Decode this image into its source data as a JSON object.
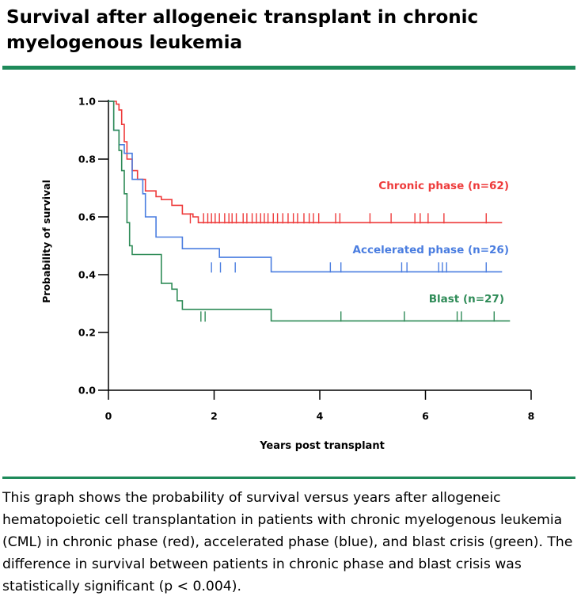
{
  "title": "Survival after allogeneic transplant in chronic myelogenous leukemia",
  "caption": "This graph shows the probability of survival versus years after allogeneic hematopoietic cell transplantation in patients with chronic myelogenous leukemia (CML) in chronic phase (red), accelerated phase (blue), and blast crisis (green). The difference in survival between patients in chronic phase and blast crisis was statistically significant (p < 0.004).",
  "chart_data": {
    "type": "line",
    "style": "step",
    "title": "",
    "xlabel": "Years post transplant",
    "ylabel": "Probability of survival",
    "xlim": [
      0,
      8
    ],
    "ylim": [
      0,
      1
    ],
    "xticks": [
      0,
      2,
      4,
      6,
      8
    ],
    "yticks": [
      0.0,
      0.2,
      0.4,
      0.6,
      0.8,
      1.0
    ],
    "xtick_labels": [
      "0",
      "2",
      "4",
      "6",
      "8"
    ],
    "ytick_labels": [
      "0.0",
      "0.2",
      "0.4",
      "0.6",
      "0.8",
      "1.0"
    ],
    "grid": false,
    "legend": "inline labels at right",
    "series": [
      {
        "name": "Chronic phase (n=62)",
        "color": "#ee3b3b",
        "points": [
          [
            0,
            1.0
          ],
          [
            0.15,
            0.99
          ],
          [
            0.2,
            0.97
          ],
          [
            0.25,
            0.92
          ],
          [
            0.3,
            0.86
          ],
          [
            0.35,
            0.8
          ],
          [
            0.45,
            0.76
          ],
          [
            0.55,
            0.73
          ],
          [
            0.7,
            0.69
          ],
          [
            0.9,
            0.67
          ],
          [
            1.0,
            0.66
          ],
          [
            1.2,
            0.64
          ],
          [
            1.4,
            0.61
          ],
          [
            1.6,
            0.6
          ],
          [
            1.7,
            0.58
          ],
          [
            7.45,
            0.58
          ]
        ],
        "censor_x": [
          1.55,
          1.8,
          1.88,
          1.95,
          2.02,
          2.1,
          2.2,
          2.28,
          2.34,
          2.42,
          2.55,
          2.62,
          2.72,
          2.8,
          2.88,
          2.95,
          3.02,
          3.12,
          3.2,
          3.3,
          3.4,
          3.5,
          3.58,
          3.7,
          3.8,
          3.88,
          3.98,
          4.3,
          4.38,
          4.95,
          5.35,
          5.8,
          5.9,
          6.05,
          6.35,
          7.15
        ],
        "censor_y": 0.58
      },
      {
        "name": "Accelerated phase (n=26)",
        "color": "#4a7de0",
        "points": [
          [
            0,
            1.0
          ],
          [
            0.1,
            0.9
          ],
          [
            0.2,
            0.85
          ],
          [
            0.3,
            0.82
          ],
          [
            0.45,
            0.73
          ],
          [
            0.6,
            0.73
          ],
          [
            0.65,
            0.68
          ],
          [
            0.7,
            0.6
          ],
          [
            0.9,
            0.53
          ],
          [
            1.4,
            0.49
          ],
          [
            1.95,
            0.49
          ],
          [
            2.1,
            0.46
          ],
          [
            3.08,
            0.46
          ],
          [
            3.08,
            0.41
          ],
          [
            7.45,
            0.41
          ]
        ],
        "censor_x": [
          1.95,
          2.12,
          2.4,
          4.2,
          4.4,
          5.55,
          5.65,
          6.25,
          6.32,
          6.4,
          7.15
        ],
        "censor_y": 0.41
      },
      {
        "name": "Blast (n=27)",
        "color": "#2e8b57",
        "points": [
          [
            0,
            1.0
          ],
          [
            0.1,
            0.9
          ],
          [
            0.2,
            0.83
          ],
          [
            0.25,
            0.76
          ],
          [
            0.3,
            0.68
          ],
          [
            0.35,
            0.58
          ],
          [
            0.4,
            0.5
          ],
          [
            0.45,
            0.47
          ],
          [
            0.9,
            0.47
          ],
          [
            1.0,
            0.37
          ],
          [
            1.2,
            0.35
          ],
          [
            1.3,
            0.31
          ],
          [
            1.4,
            0.28
          ],
          [
            3.08,
            0.28
          ],
          [
            3.08,
            0.24
          ],
          [
            7.6,
            0.24
          ]
        ],
        "censor_x": [
          1.75,
          1.83,
          4.4,
          5.6,
          6.6,
          6.68,
          7.3
        ],
        "censor_y": 0.24
      }
    ]
  }
}
